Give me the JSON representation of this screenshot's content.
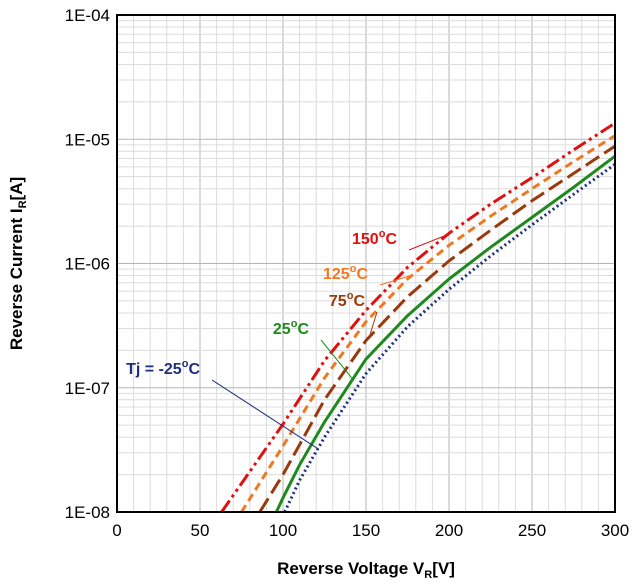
{
  "chart_data": {
    "type": "line",
    "title": "",
    "xlabel": "Reverse Voltage V",
    "xlabel_sub": "R",
    "xlabel_unit": "[V]",
    "ylabel": "Reverse Current I",
    "ylabel_sub": "R",
    "ylabel_unit": "[A]",
    "xlim": [
      0,
      300
    ],
    "ylim": [
      1e-08,
      0.0001
    ],
    "y_scale": "log",
    "grid": true,
    "x_ticks": [
      0,
      50,
      100,
      150,
      200,
      250,
      300
    ],
    "y_ticks": [
      {
        "value": 1e-08,
        "label": "1E-08"
      },
      {
        "value": 1e-07,
        "label": "1E-07"
      },
      {
        "value": 1e-06,
        "label": "1E-06"
      },
      {
        "value": 1e-05,
        "label": "1E-05"
      },
      {
        "value": 0.0001,
        "label": "1E-04"
      }
    ],
    "series": [
      {
        "name": "Tj = -25°C",
        "color": "#1f2f7a",
        "dash": "2,3",
        "x": [
          101,
          110,
          125,
          150,
          175,
          200,
          225,
          250,
          275,
          300
        ],
        "y": [
          1e-08,
          1.8e-08,
          4e-08,
          1.3e-07,
          3.1e-07,
          6.2e-07,
          1.15e-06,
          2.05e-06,
          3.6e-06,
          6.3e-06
        ]
      },
      {
        "name": "25°C",
        "color": "#1e8a1e",
        "dash": "",
        "x": [
          96,
          100,
          110,
          125,
          150,
          175,
          200,
          225,
          250,
          275,
          300
        ],
        "y": [
          1e-08,
          1.3e-08,
          2.4e-08,
          5.3e-08,
          1.7e-07,
          3.8e-07,
          7.5e-07,
          1.35e-06,
          2.35e-06,
          4.1e-06,
          7.3e-06
        ]
      },
      {
        "name": "75°C",
        "color": "#9a3a0c",
        "dash": "16,6",
        "x": [
          86,
          100,
          125,
          150,
          175,
          200,
          225,
          250,
          275,
          300
        ],
        "y": [
          1e-08,
          2e-08,
          8e-08,
          2.4e-07,
          5.4e-07,
          1.05e-06,
          1.85e-06,
          3.2e-06,
          5.3e-06,
          8.8e-06
        ]
      },
      {
        "name": "125°C",
        "color": "#f07820",
        "dash": "8,5",
        "x": [
          75,
          100,
          125,
          150,
          175,
          200,
          225,
          250,
          275,
          300
        ],
        "y": [
          1e-08,
          3.4e-08,
          1.2e-07,
          3.4e-07,
          7.5e-07,
          1.4e-06,
          2.4e-06,
          4e-06,
          6.6e-06,
          1.07e-05
        ]
      },
      {
        "name": "150°C",
        "color": "#e01010",
        "dash": "14,4,3,4,3,4",
        "x": [
          63,
          100,
          125,
          150,
          175,
          200,
          225,
          250,
          275,
          300
        ],
        "y": [
          1e-08,
          5.1e-08,
          1.65e-07,
          4.2e-07,
          9.3e-07,
          1.75e-06,
          3e-06,
          4.9e-06,
          8.2e-06,
          1.35e-05
        ]
      }
    ],
    "annotations": [
      {
        "text": "Tj = -25",
        "sup": "o",
        "unit": "C",
        "color": "#1f2f7a",
        "series": 0
      },
      {
        "text": "25",
        "sup": "o",
        "unit": "C",
        "color": "#1e8a1e",
        "series": 1
      },
      {
        "text": "75",
        "sup": "o",
        "unit": "C",
        "color": "#9a3a0c",
        "series": 2
      },
      {
        "text": "125",
        "sup": "o",
        "unit": "C",
        "color": "#f07820",
        "series": 3
      },
      {
        "text": "150",
        "sup": "o",
        "unit": "C",
        "color": "#e01010",
        "series": 4
      }
    ]
  }
}
